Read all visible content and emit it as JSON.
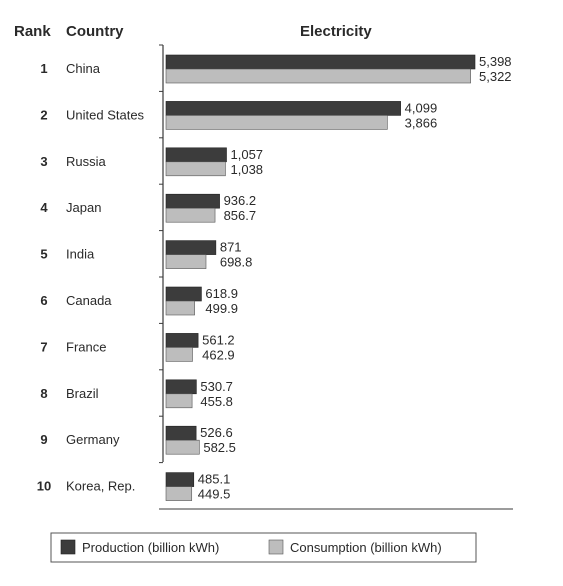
{
  "headers": {
    "rank": "Rank",
    "country": "Country",
    "title": "Electricity"
  },
  "colors": {
    "production": "#3c3c3c",
    "consumption": "#bdbdbd",
    "axis": "#3a3a3a"
  },
  "chart_data": {
    "type": "bar",
    "orientation": "horizontal",
    "title": "Electricity",
    "ranks": [
      "1",
      "2",
      "3",
      "4",
      "5",
      "6",
      "7",
      "8",
      "9",
      "10"
    ],
    "categories": [
      "China",
      "United States",
      "Russia",
      "Japan",
      "India",
      "Canada",
      "France",
      "Brazil",
      "Germany",
      "Korea, Rep."
    ],
    "series": [
      {
        "name": "Production (billion kWh)",
        "values": [
          5398,
          4099,
          1057,
          936.2,
          871,
          618.9,
          561.2,
          530.7,
          526.6,
          485.1
        ],
        "labels": [
          "5,398",
          "4,099",
          "1,057",
          "936.2",
          "871",
          "618.9",
          "561.2",
          "530.7",
          "526.6",
          "485.1"
        ]
      },
      {
        "name": "Consumption (billion kWh)",
        "values": [
          5322,
          3866,
          1038,
          856.7,
          698.8,
          499.9,
          462.9,
          455.8,
          582.5,
          449.5
        ],
        "labels": [
          "5,322",
          "3,866",
          "1,038",
          "856.7",
          "698.8",
          "499.9",
          "462.9",
          "455.8",
          "582.5",
          "449.5"
        ]
      }
    ],
    "xlim": [
      0,
      5398
    ],
    "legend_position": "bottom",
    "grid": false
  }
}
